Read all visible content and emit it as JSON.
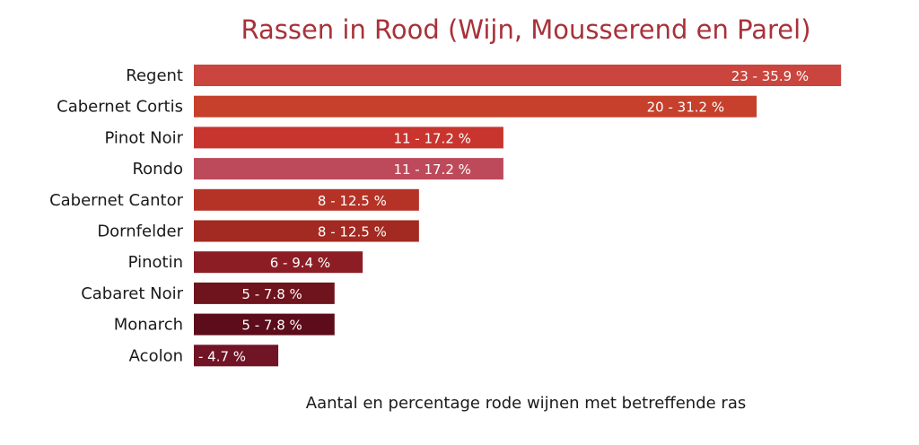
{
  "chart_data": {
    "type": "bar",
    "orientation": "horizontal",
    "title": "Rassen in Rood (Wijn, Mousserend en Parel)",
    "xlabel": "Aantal en percentage rode wijnen met betreffende ras",
    "ylabel": "",
    "grid": false,
    "categories": [
      "Regent",
      "Cabernet Cortis",
      "Pinot Noir",
      "Rondo",
      "Cabernet Cantor",
      "Dornfelder",
      "Pinotin",
      "Cabaret Noir",
      "Monarch",
      "Acolon"
    ],
    "values": [
      23,
      20,
      11,
      11,
      8,
      8,
      6,
      5,
      5,
      3
    ],
    "labels": [
      "23 - 35.9 %",
      "20 - 31.2 %",
      "11 - 17.2 %",
      "11 - 17.2 %",
      "8 - 12.5 %",
      "8 - 12.5 %",
      "6 - 9.4 %",
      "5 - 7.8 %",
      "5 - 7.8 %",
      "3 - 4.7 %"
    ],
    "colors": [
      "#c9453d",
      "#c6402b",
      "#c8352e",
      "#bd4a5b",
      "#b53227",
      "#a22a22",
      "#8c1d24",
      "#6f131d",
      "#5c0c1a",
      "#711425"
    ],
    "xlim": [
      0,
      23.6
    ]
  }
}
